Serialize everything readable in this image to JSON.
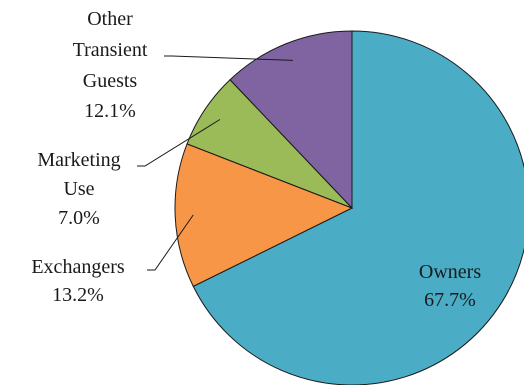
{
  "chart_data": {
    "type": "pie",
    "slices": [
      {
        "name": "Owners",
        "value": 67.7,
        "value_label": "67.7%",
        "color": "#4BACC6"
      },
      {
        "name": "Exchangers",
        "value": 13.2,
        "value_label": "13.2%",
        "color": "#F79646"
      },
      {
        "name": "Marketing Use",
        "value": 7.0,
        "value_label": "7.0%",
        "color": "#9BBB59"
      },
      {
        "name": "Other Transient Guests",
        "value": 12.1,
        "value_label": "12.1%",
        "color": "#8064A2"
      }
    ],
    "start": "12 o'clock",
    "direction": "clockwise",
    "legend": "none"
  }
}
